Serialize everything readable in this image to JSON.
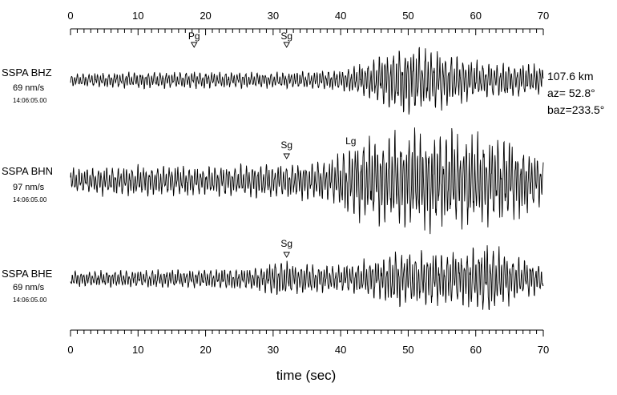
{
  "chart_data": {
    "type": "line",
    "title": "",
    "xlabel": "time (sec)",
    "ylabel": "",
    "xlim": [
      0,
      70
    ],
    "major_ticks": [
      0,
      10,
      20,
      30,
      40,
      50,
      60,
      70
    ],
    "minor_tick_step": 1,
    "grid": false,
    "legend": "none",
    "line_color": "#000000",
    "series": [
      {
        "station": "SSPA BHZ",
        "amplitude": "69 nm/s",
        "start_time": "14:06:05.00",
        "phases": [
          {
            "label": "Pg",
            "t": 18.3
          },
          {
            "label": "Sg",
            "t": 32.0
          }
        ],
        "envelope": [
          [
            0,
            0.18
          ],
          [
            10,
            0.24
          ],
          [
            18,
            0.25
          ],
          [
            30,
            0.22
          ],
          [
            40,
            0.3
          ],
          [
            44,
            0.55
          ],
          [
            47,
            0.85
          ],
          [
            50,
            1.0
          ],
          [
            55,
            0.85
          ],
          [
            60,
            0.55
          ],
          [
            65,
            0.5
          ],
          [
            70,
            0.45
          ]
        ]
      },
      {
        "station": "SSPA BHN",
        "amplitude": "97 nm/s",
        "start_time": "14:06:05.00",
        "phases": [
          {
            "label": "Sg",
            "t": 32.0
          },
          {
            "label": "Lg",
            "t": 41.5,
            "marker": false
          }
        ],
        "envelope": [
          [
            0,
            0.25
          ],
          [
            10,
            0.3
          ],
          [
            20,
            0.3
          ],
          [
            30,
            0.35
          ],
          [
            38,
            0.4
          ],
          [
            41,
            0.7
          ],
          [
            44,
            0.85
          ],
          [
            50,
            0.95
          ],
          [
            55,
            1.0
          ],
          [
            60,
            0.9
          ],
          [
            65,
            0.85
          ],
          [
            70,
            0.45
          ]
        ]
      },
      {
        "station": "SSPA BHE",
        "amplitude": "69 nm/s",
        "start_time": "14:06:05.00",
        "phases": [
          {
            "label": "Sg",
            "t": 32.0
          }
        ],
        "envelope": [
          [
            0,
            0.2
          ],
          [
            20,
            0.25
          ],
          [
            28,
            0.3
          ],
          [
            31,
            0.5
          ],
          [
            34,
            0.4
          ],
          [
            40,
            0.35
          ],
          [
            46,
            0.55
          ],
          [
            48,
            0.75
          ],
          [
            52,
            0.7
          ],
          [
            57,
            0.7
          ],
          [
            62,
            0.9
          ],
          [
            66,
            0.55
          ],
          [
            70,
            0.4
          ]
        ]
      }
    ],
    "annotations": [
      "107.6 km",
      "az= 52.8°",
      "baz=233.5°"
    ]
  }
}
